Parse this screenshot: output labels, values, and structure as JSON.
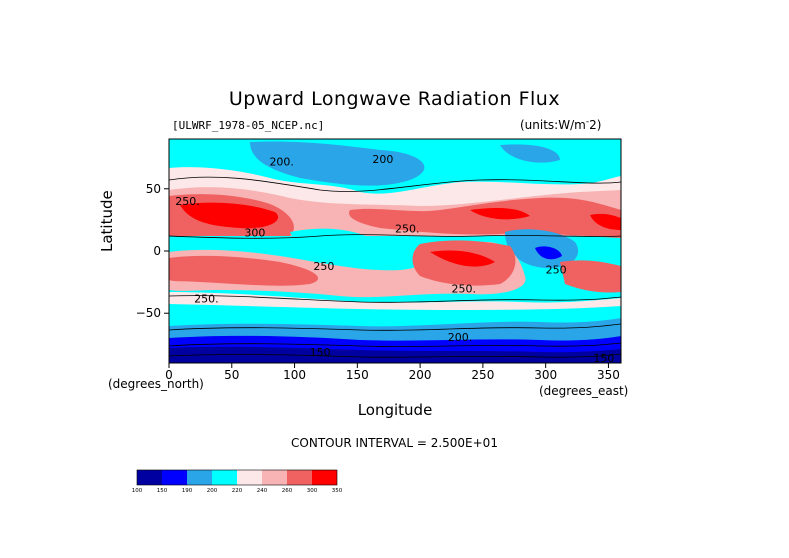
{
  "title": "Upward Longwave Radiation Flux",
  "dataset_label": "[ULWRF_1978-05_NCEP.nc]",
  "units_label": "(units:W/m^-2)",
  "xlabel": "Longitude",
  "ylabel": "Latitude",
  "x_unit_label": "(degrees_north)",
  "x_unit_label_right": "(degrees_east)",
  "contour_interval_text": "CONTOUR INTERVAL = 2.500E+01",
  "colors": {
    "ramp": [
      "#0000a0",
      "#0000ff",
      "#2aa6e8",
      "#00ffff",
      "#fce8e8",
      "#f8b4b4",
      "#f06262",
      "#ff0000"
    ]
  },
  "chart_data": {
    "type": "heatmap",
    "title": "Upward Longwave Radiation Flux",
    "xlabel": "Longitude",
    "ylabel": "Latitude",
    "xlim": [
      0,
      360
    ],
    "ylim": [
      -90,
      90
    ],
    "x_ticks": [
      "0",
      "50",
      "100",
      "150",
      "200",
      "250",
      "300",
      "350"
    ],
    "x_tick_values": [
      0,
      50,
      100,
      150,
      200,
      250,
      300,
      350
    ],
    "y_ticks": [
      "50",
      "0",
      "−50"
    ],
    "y_tick_values": [
      50,
      0,
      -50
    ],
    "contour_labels": [
      {
        "text": "200.",
        "lon": 80,
        "lat": 72
      },
      {
        "text": "200",
        "lon": 162,
        "lat": 74
      },
      {
        "text": "250.",
        "lon": 5,
        "lat": 40
      },
      {
        "text": "300",
        "lon": 60,
        "lat": 15
      },
      {
        "text": "250",
        "lon": 115,
        "lat": -12
      },
      {
        "text": "250.",
        "lon": 180,
        "lat": 18
      },
      {
        "text": "250.",
        "lon": 225,
        "lat": -30
      },
      {
        "text": "250.",
        "lon": 20,
        "lat": -38
      },
      {
        "text": "200.",
        "lon": 222,
        "lat": -69
      },
      {
        "text": "150",
        "lon": 112,
        "lat": -81
      },
      {
        "text": "250",
        "lon": 300,
        "lat": -15
      },
      {
        "text": "150",
        "lon": 338,
        "lat": -86
      }
    ],
    "colorbar": {
      "levels": [
        "100",
        "150",
        "190",
        "200",
        "220",
        "240",
        "260",
        "300",
        "350"
      ]
    }
  }
}
